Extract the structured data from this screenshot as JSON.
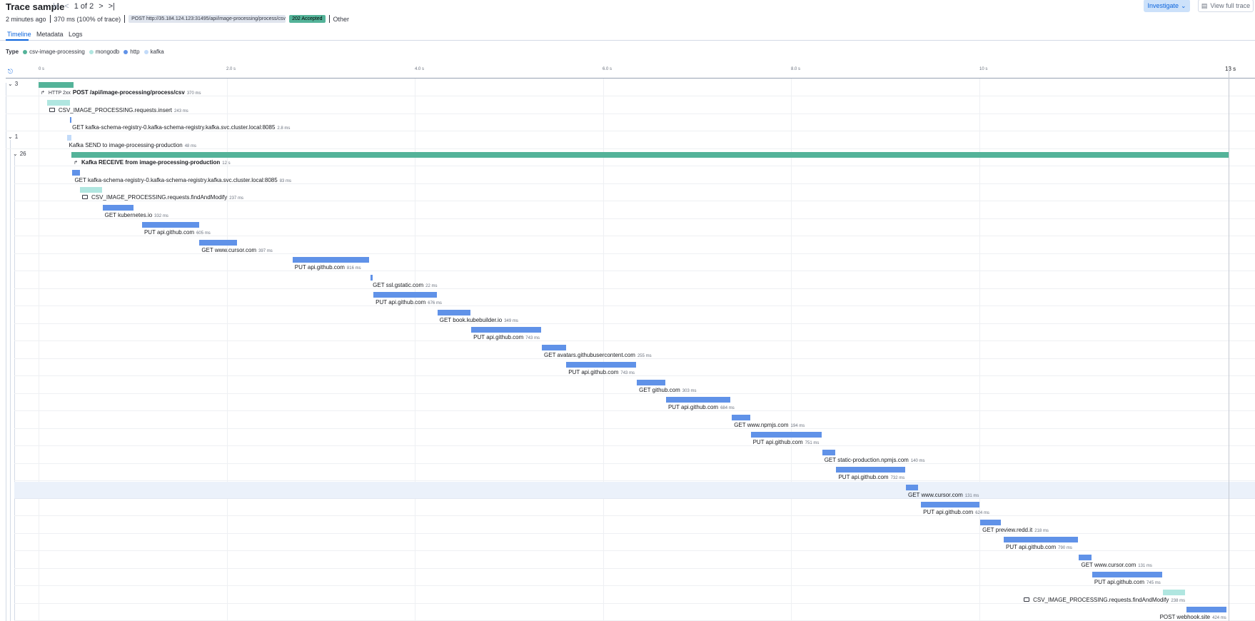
{
  "header": {
    "title": "Trace sample",
    "pager_text": "1 of 2",
    "investigate_label": "Investigate",
    "view_full_trace_label": "View full trace"
  },
  "summary": {
    "time_ago": "2 minutes ago",
    "duration": "370 ms (100% of trace)",
    "url_badge": "POST http://35.184.124.123:31495/api/image-processing/process/csv?...",
    "status_badge": "202 Accepted",
    "type": "Other"
  },
  "tabs": [
    "Timeline",
    "Metadata",
    "Logs"
  ],
  "legend": {
    "label": "Type",
    "items": [
      {
        "name": "csv-image-processing",
        "color": "#54b399"
      },
      {
        "name": "mongodb",
        "color": "#b0e6e0"
      },
      {
        "name": "http",
        "color": "#6092e8"
      },
      {
        "name": "kafka",
        "color": "#c2dbf9"
      }
    ]
  },
  "ruler": {
    "ticks": [
      "0 s",
      "2.0 s",
      "4.0 s",
      "6.0 s",
      "8.0 s",
      "10 s"
    ],
    "end_label": "13 s",
    "total_seconds": 12.65
  },
  "spans": [
    {
      "toggle": "3",
      "name": "POST /api/image-processing/process/csv",
      "duration": "370 ms",
      "start_s": 0,
      "dur_s": 0.37,
      "kind": "service",
      "bold": true,
      "http_badge": "HTTP 2xx",
      "icon": "span-icon"
    },
    {
      "name": "CSV_IMAGE_PROCESSING.requests.insert",
      "duration": "243 ms",
      "start_s": 0.09,
      "dur_s": 0.243,
      "kind": "mongodb",
      "icon": "db-icon"
    },
    {
      "name": "GET kafka-schema-registry-0.kafka-schema-registry.kafka.svc.cluster.local:8085",
      "duration": "2.8 ms",
      "start_s": 0.335,
      "dur_s": 0.0028,
      "kind": "http"
    },
    {
      "toggle": "1",
      "name": "Kafka SEND to image-processing-production",
      "duration": "48 ms",
      "start_s": 0.3,
      "dur_s": 0.048,
      "kind": "kafka"
    },
    {
      "toggle": "26",
      "name": "Kafka RECEIVE from image-processing-production",
      "duration": "12 s",
      "start_s": 0.35,
      "dur_s": 12.3,
      "kind": "service",
      "bold": true,
      "icon": "span-icon"
    },
    {
      "name": "GET kafka-schema-registry-0.kafka-schema-registry.kafka.svc.cluster.local:8085",
      "duration": "83 ms",
      "start_s": 0.36,
      "dur_s": 0.083,
      "kind": "http"
    },
    {
      "name": "CSV_IMAGE_PROCESSING.requests.findAndModify",
      "duration": "237 ms",
      "start_s": 0.44,
      "dur_s": 0.237,
      "kind": "mongodb",
      "icon": "db-icon"
    },
    {
      "name": "GET kubernetes.io",
      "duration": "332 ms",
      "start_s": 0.68,
      "dur_s": 0.332,
      "kind": "http"
    },
    {
      "name": "PUT api.github.com",
      "duration": "605 ms",
      "start_s": 1.1,
      "dur_s": 0.605,
      "kind": "http"
    },
    {
      "name": "GET www.cursor.com",
      "duration": "397 ms",
      "start_s": 1.71,
      "dur_s": 0.397,
      "kind": "http"
    },
    {
      "name": "PUT api.github.com",
      "duration": "816 ms",
      "start_s": 2.7,
      "dur_s": 0.816,
      "kind": "http"
    },
    {
      "name": "GET ssl.gstatic.com",
      "duration": "22 ms",
      "start_s": 3.53,
      "dur_s": 0.022,
      "kind": "http"
    },
    {
      "name": "PUT api.github.com",
      "duration": "676 ms",
      "start_s": 3.56,
      "dur_s": 0.676,
      "kind": "http"
    },
    {
      "name": "GET book.kubebuilder.io",
      "duration": "349 ms",
      "start_s": 4.24,
      "dur_s": 0.349,
      "kind": "http"
    },
    {
      "name": "PUT api.github.com",
      "duration": "743 ms",
      "start_s": 4.6,
      "dur_s": 0.743,
      "kind": "http"
    },
    {
      "name": "GET avatars.githubusercontent.com",
      "duration": "255 ms",
      "start_s": 5.35,
      "dur_s": 0.255,
      "kind": "http"
    },
    {
      "name": "PUT api.github.com",
      "duration": "743 ms",
      "start_s": 5.61,
      "dur_s": 0.743,
      "kind": "http"
    },
    {
      "name": "GET github.com",
      "duration": "303 ms",
      "start_s": 6.36,
      "dur_s": 0.303,
      "kind": "http"
    },
    {
      "name": "PUT api.github.com",
      "duration": "684 ms",
      "start_s": 6.67,
      "dur_s": 0.684,
      "kind": "http"
    },
    {
      "name": "GET www.npmjs.com",
      "duration": "194 ms",
      "start_s": 7.37,
      "dur_s": 0.194,
      "kind": "http"
    },
    {
      "name": "PUT api.github.com",
      "duration": "751 ms",
      "start_s": 7.57,
      "dur_s": 0.751,
      "kind": "http"
    },
    {
      "name": "GET static-production.npmjs.com",
      "duration": "140 ms",
      "start_s": 8.33,
      "dur_s": 0.14,
      "kind": "http"
    },
    {
      "name": "PUT api.github.com",
      "duration": "732 ms",
      "start_s": 8.48,
      "dur_s": 0.732,
      "kind": "http"
    },
    {
      "name": "GET www.cursor.com",
      "duration": "131 ms",
      "start_s": 9.22,
      "dur_s": 0.131,
      "kind": "http",
      "highlighted": true
    },
    {
      "name": "PUT api.github.com",
      "duration": "624 ms",
      "start_s": 9.38,
      "dur_s": 0.624,
      "kind": "http"
    },
    {
      "name": "GET preview.redd.it",
      "duration": "218 ms",
      "start_s": 10.01,
      "dur_s": 0.218,
      "kind": "http"
    },
    {
      "name": "PUT api.github.com",
      "duration": "790 ms",
      "start_s": 10.26,
      "dur_s": 0.79,
      "kind": "http"
    },
    {
      "name": "GET www.cursor.com",
      "duration": "131 ms",
      "start_s": 11.06,
      "dur_s": 0.131,
      "kind": "http"
    },
    {
      "name": "PUT api.github.com",
      "duration": "745 ms",
      "start_s": 11.2,
      "dur_s": 0.745,
      "kind": "http"
    },
    {
      "name": "CSV_IMAGE_PROCESSING.requests.findAndModify",
      "duration": "238 ms",
      "start_s": 11.95,
      "dur_s": 0.238,
      "kind": "mongodb",
      "icon": "db-icon"
    },
    {
      "name": "POST webhook.site",
      "duration": "424 ms",
      "start_s": 12.2,
      "dur_s": 0.424,
      "kind": "http"
    }
  ]
}
